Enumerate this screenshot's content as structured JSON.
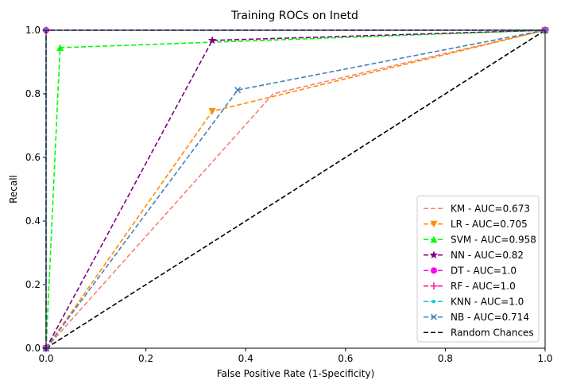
{
  "chart_data": {
    "type": "line",
    "title": "Training ROCs on Inetd",
    "xlabel": "False Positive Rate (1-Specificity)",
    "ylabel": "Recall",
    "xlim": [
      0.0,
      1.0
    ],
    "ylim": [
      0.0,
      1.0
    ],
    "xticks": [
      "0.0",
      "0.2",
      "0.4",
      "0.6",
      "0.8",
      "1.0"
    ],
    "yticks": [
      "0.0",
      "0.2",
      "0.4",
      "0.6",
      "0.8",
      "1.0"
    ],
    "grid": false,
    "legend_position": "lower-right",
    "series": [
      {
        "name": "KM - AUC=0.673",
        "color": "#fa8072",
        "marker": "none",
        "x": [
          0.0,
          0.455,
          1.0
        ],
        "y": [
          0.0,
          0.8,
          1.0
        ]
      },
      {
        "name": "LR - AUC=0.705",
        "color": "#ff8c00",
        "marker": "triangle-down",
        "x": [
          0.0,
          0.333,
          1.0
        ],
        "y": [
          0.0,
          0.745,
          1.0
        ]
      },
      {
        "name": "SVM - AUC=0.958",
        "color": "#00ff00",
        "marker": "triangle-up",
        "x": [
          0.0,
          0.028,
          1.0
        ],
        "y": [
          0.0,
          0.945,
          1.0
        ]
      },
      {
        "name": "NN - AUC=0.82",
        "color": "#800080",
        "marker": "star",
        "x": [
          0.0,
          0.333,
          1.0
        ],
        "y": [
          0.0,
          0.968,
          1.0
        ]
      },
      {
        "name": "DT - AUC=1.0",
        "color": "#ff00ff",
        "marker": "circle",
        "x": [
          0.0,
          0.0,
          1.0
        ],
        "y": [
          0.0,
          1.0,
          1.0
        ]
      },
      {
        "name": "RF - AUC=1.0",
        "color": "#ff1493",
        "marker": "plus",
        "x": [
          0.0,
          0.0,
          1.0
        ],
        "y": [
          0.0,
          1.0,
          1.0
        ]
      },
      {
        "name": "KNN - AUC=1.0",
        "color": "#00ced1",
        "marker": "point",
        "x": [
          0.0,
          0.0,
          1.0
        ],
        "y": [
          0.0,
          1.0,
          1.0
        ]
      },
      {
        "name": "NB - AUC=0.714",
        "color": "#4682b4",
        "marker": "x",
        "x": [
          0.0,
          0.384,
          1.0
        ],
        "y": [
          0.0,
          0.812,
          1.0
        ]
      },
      {
        "name": "Random Chances",
        "color": "#000000",
        "marker": "none",
        "x": [
          0.0,
          1.0
        ],
        "y": [
          0.0,
          1.0
        ]
      }
    ]
  }
}
